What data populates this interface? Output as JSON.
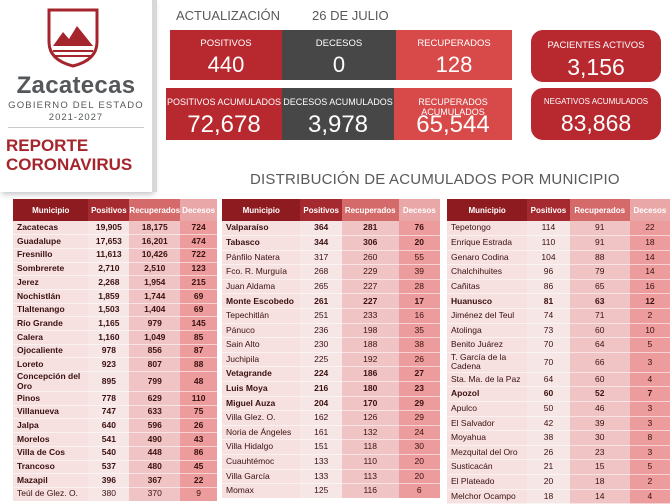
{
  "brand": {
    "name": "Zacatecas",
    "subtitle": "GOBIERNO DEL ESTADO",
    "years": "2021-2027",
    "report_line1": "REPORTE",
    "report_line2": "CORONAVIRUS"
  },
  "update": {
    "label": "ACTUALIZACIÓN",
    "date": "26 DE JULIO"
  },
  "daily": {
    "positivos": {
      "label": "POSITIVOS",
      "value": "440"
    },
    "decesos": {
      "label": "DECESOS",
      "value": "0"
    },
    "recuperados": {
      "label": "RECUPERADOS",
      "value": "128"
    }
  },
  "cumulative": {
    "positivos": {
      "label": "POSITIVOS ACUMULADOS",
      "value": "72,678"
    },
    "decesos": {
      "label": "DECESOS ACUMULADOS",
      "value": "3,978"
    },
    "recuperados": {
      "label": "RECUPERADOS ACUMULADOS",
      "value": "65,544"
    }
  },
  "activos": {
    "label": "PACIENTES ACTIVOS",
    "value": "3,156"
  },
  "negativos": {
    "label": "NEGATIVOS ACUMULADOS",
    "value": "83,868"
  },
  "distribution_title": "DISTRIBUCIÓN DE ACUMULADOS POR MUNICIPIO",
  "headers": [
    "Municipio",
    "Positivos",
    "Recuperados",
    "Decesos"
  ],
  "colors": {
    "primary": "#b8282f",
    "dark": "#474747",
    "light": "#d84a4a"
  },
  "tables": [
    [
      {
        "m": "Zacatecas",
        "p": "19,905",
        "r": "18,175",
        "d": "724",
        "b": true
      },
      {
        "m": "Guadalupe",
        "p": "17,653",
        "r": "16,201",
        "d": "474",
        "b": true
      },
      {
        "m": "Fresnillo",
        "p": "11,613",
        "r": "10,426",
        "d": "722",
        "b": true
      },
      {
        "m": "Sombrerete",
        "p": "2,710",
        "r": "2,510",
        "d": "123",
        "b": true
      },
      {
        "m": "Jerez",
        "p": "2,268",
        "r": "1,954",
        "d": "215",
        "b": true
      },
      {
        "m": "Nochistlán",
        "p": "1,859",
        "r": "1,744",
        "d": "69",
        "b": true
      },
      {
        "m": "Tlaltenango",
        "p": "1,503",
        "r": "1,404",
        "d": "69",
        "b": true
      },
      {
        "m": "Río Grande",
        "p": "1,165",
        "r": "979",
        "d": "145",
        "b": true
      },
      {
        "m": "Calera",
        "p": "1,160",
        "r": "1,049",
        "d": "85",
        "b": true
      },
      {
        "m": "Ojocaliente",
        "p": "978",
        "r": "856",
        "d": "87",
        "b": true
      },
      {
        "m": "Loreto",
        "p": "923",
        "r": "807",
        "d": "88",
        "b": true
      },
      {
        "m": "Concepción del Oro",
        "p": "895",
        "r": "799",
        "d": "48",
        "b": true
      },
      {
        "m": "Pinos",
        "p": "778",
        "r": "629",
        "d": "110",
        "b": true
      },
      {
        "m": "Villanueva",
        "p": "747",
        "r": "633",
        "d": "75",
        "b": true
      },
      {
        "m": "Jalpa",
        "p": "640",
        "r": "596",
        "d": "26",
        "b": true
      },
      {
        "m": "Morelos",
        "p": "541",
        "r": "490",
        "d": "43",
        "b": true
      },
      {
        "m": "Villa de Cos",
        "p": "540",
        "r": "448",
        "d": "86",
        "b": true
      },
      {
        "m": "Trancoso",
        "p": "537",
        "r": "480",
        "d": "45",
        "b": true
      },
      {
        "m": "Mazapil",
        "p": "396",
        "r": "367",
        "d": "22",
        "b": true
      },
      {
        "m": "Teúl de Glez. O.",
        "p": "380",
        "r": "370",
        "d": "9",
        "b": false
      }
    ],
    [
      {
        "m": "Valparaíso",
        "p": "364",
        "r": "281",
        "d": "76",
        "b": true
      },
      {
        "m": "Tabasco",
        "p": "344",
        "r": "306",
        "d": "20",
        "b": true
      },
      {
        "m": "Pánfilo Natera",
        "p": "317",
        "r": "260",
        "d": "55",
        "b": false
      },
      {
        "m": "Fco. R. Murguía",
        "p": "268",
        "r": "229",
        "d": "39",
        "b": false
      },
      {
        "m": "Juan Aldama",
        "p": "265",
        "r": "227",
        "d": "28",
        "b": false
      },
      {
        "m": "Monte Escobedo",
        "p": "261",
        "r": "227",
        "d": "17",
        "b": true
      },
      {
        "m": "Tepechitlán",
        "p": "251",
        "r": "233",
        "d": "16",
        "b": false
      },
      {
        "m": "Pánuco",
        "p": "236",
        "r": "198",
        "d": "35",
        "b": false
      },
      {
        "m": "Sain Alto",
        "p": "230",
        "r": "188",
        "d": "38",
        "b": false
      },
      {
        "m": "Juchipila",
        "p": "225",
        "r": "192",
        "d": "26",
        "b": false
      },
      {
        "m": "Vetagrande",
        "p": "224",
        "r": "186",
        "d": "27",
        "b": true
      },
      {
        "m": "Luis Moya",
        "p": "216",
        "r": "180",
        "d": "23",
        "b": true
      },
      {
        "m": "Miguel Auza",
        "p": "204",
        "r": "170",
        "d": "29",
        "b": true
      },
      {
        "m": "Villa Glez. O.",
        "p": "162",
        "r": "126",
        "d": "29",
        "b": false
      },
      {
        "m": "Noria de Ángeles",
        "p": "161",
        "r": "132",
        "d": "24",
        "b": false
      },
      {
        "m": "Villa Hidalgo",
        "p": "151",
        "r": "118",
        "d": "30",
        "b": false
      },
      {
        "m": "Cuauhtémoc",
        "p": "133",
        "r": "110",
        "d": "20",
        "b": false
      },
      {
        "m": "Villa García",
        "p": "133",
        "r": "113",
        "d": "20",
        "b": false
      },
      {
        "m": "Momax",
        "p": "125",
        "r": "116",
        "d": "6",
        "b": false
      }
    ],
    [
      {
        "m": "Tepetongo",
        "p": "114",
        "r": "91",
        "d": "22",
        "b": false
      },
      {
        "m": "Enrique Estrada",
        "p": "110",
        "r": "91",
        "d": "18",
        "b": false
      },
      {
        "m": "Genaro Codina",
        "p": "104",
        "r": "88",
        "d": "14",
        "b": false
      },
      {
        "m": "Chalchihuites",
        "p": "96",
        "r": "79",
        "d": "14",
        "b": false
      },
      {
        "m": "Cañitas",
        "p": "86",
        "r": "65",
        "d": "16",
        "b": false
      },
      {
        "m": "Huanusco",
        "p": "81",
        "r": "63",
        "d": "12",
        "b": true
      },
      {
        "m": "Jiménez del Teul",
        "p": "74",
        "r": "71",
        "d": "2",
        "b": false
      },
      {
        "m": "Atolinga",
        "p": "73",
        "r": "60",
        "d": "10",
        "b": false
      },
      {
        "m": "Benito Juárez",
        "p": "70",
        "r": "64",
        "d": "5",
        "b": false
      },
      {
        "m": "T. García de la Cadena",
        "p": "70",
        "r": "66",
        "d": "3",
        "b": false
      },
      {
        "m": "Sta. Ma. de la Paz",
        "p": "64",
        "r": "60",
        "d": "4",
        "b": false
      },
      {
        "m": "Apozol",
        "p": "60",
        "r": "52",
        "d": "7",
        "b": true
      },
      {
        "m": "Apulco",
        "p": "50",
        "r": "46",
        "d": "3",
        "b": false
      },
      {
        "m": "El Salvador",
        "p": "42",
        "r": "39",
        "d": "3",
        "b": false
      },
      {
        "m": "Moyahua",
        "p": "38",
        "r": "30",
        "d": "8",
        "b": false
      },
      {
        "m": "Mezquital del Oro",
        "p": "26",
        "r": "23",
        "d": "3",
        "b": false
      },
      {
        "m": "Susticacán",
        "p": "21",
        "r": "15",
        "d": "5",
        "b": false
      },
      {
        "m": "El Plateado",
        "p": "20",
        "r": "18",
        "d": "2",
        "b": false
      },
      {
        "m": "Melchor Ocampo",
        "p": "18",
        "r": "14",
        "d": "4",
        "b": false
      }
    ]
  ]
}
